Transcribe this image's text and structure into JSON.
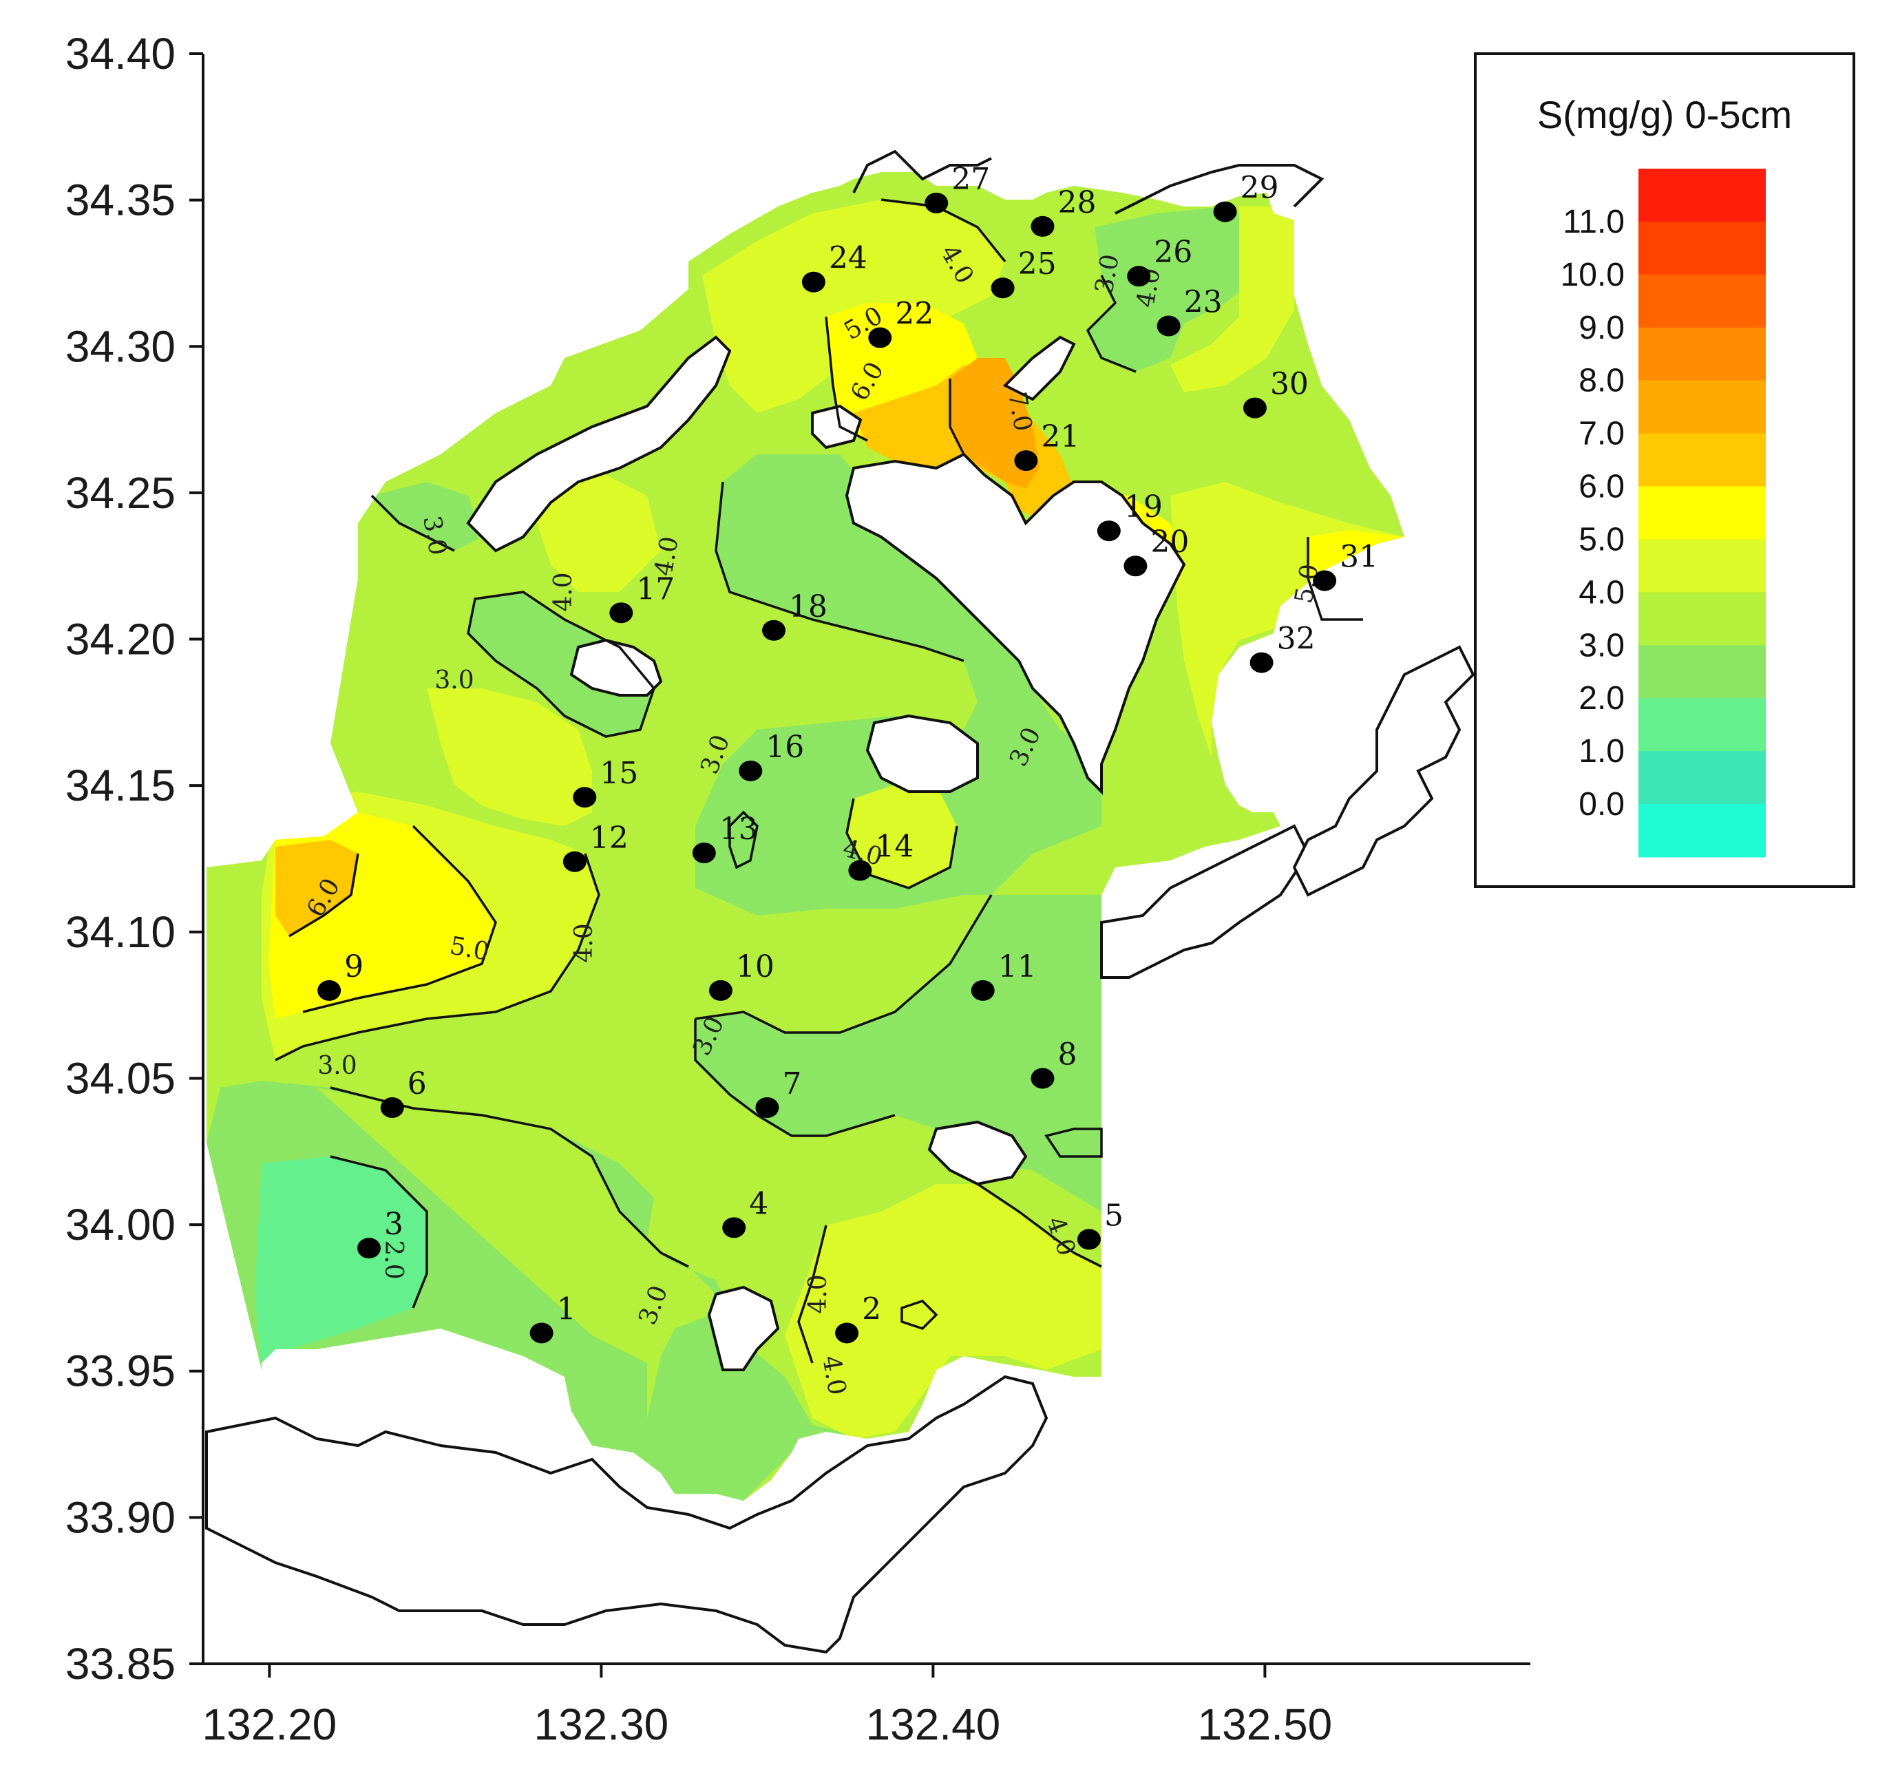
{
  "map": {
    "x_ticks": [
      "132.20",
      "132.30",
      "132.40",
      "132.50"
    ],
    "y_ticks": [
      "34.40",
      "34.35",
      "34.30",
      "34.25",
      "34.20",
      "34.15",
      "34.10",
      "34.05",
      "34.00",
      "33.95",
      "33.90",
      "33.85"
    ],
    "xlim": [
      132.18,
      132.58
    ],
    "ylim": [
      33.85,
      34.4
    ],
    "contour_labels": [
      "2.0",
      "3.0",
      "4.0",
      "5.0",
      "6.0",
      "7.0"
    ],
    "stations": [
      {
        "id": "1",
        "lon": 132.282,
        "lat": 33.963
      },
      {
        "id": "2",
        "lon": 132.374,
        "lat": 33.963
      },
      {
        "id": "3",
        "lon": 132.23,
        "lat": 33.992
      },
      {
        "id": "4",
        "lon": 132.34,
        "lat": 33.999
      },
      {
        "id": "5",
        "lon": 132.447,
        "lat": 33.995
      },
      {
        "id": "6",
        "lon": 132.237,
        "lat": 34.04
      },
      {
        "id": "7",
        "lon": 132.35,
        "lat": 34.04
      },
      {
        "id": "8",
        "lon": 132.433,
        "lat": 34.05
      },
      {
        "id": "9",
        "lon": 132.218,
        "lat": 34.08
      },
      {
        "id": "10",
        "lon": 132.336,
        "lat": 34.08
      },
      {
        "id": "11",
        "lon": 132.415,
        "lat": 34.08
      },
      {
        "id": "12",
        "lon": 132.292,
        "lat": 34.124
      },
      {
        "id": "13",
        "lon": 132.331,
        "lat": 34.127
      },
      {
        "id": "14",
        "lon": 132.378,
        "lat": 34.121
      },
      {
        "id": "15",
        "lon": 132.295,
        "lat": 34.146
      },
      {
        "id": "16",
        "lon": 132.345,
        "lat": 34.155
      },
      {
        "id": "17",
        "lon": 132.306,
        "lat": 34.209
      },
      {
        "id": "18",
        "lon": 132.352,
        "lat": 34.203
      },
      {
        "id": "19",
        "lon": 132.453,
        "lat": 34.237
      },
      {
        "id": "20",
        "lon": 132.461,
        "lat": 34.225
      },
      {
        "id": "21",
        "lon": 132.428,
        "lat": 34.261
      },
      {
        "id": "22",
        "lon": 132.384,
        "lat": 34.303
      },
      {
        "id": "23",
        "lon": 132.471,
        "lat": 34.307
      },
      {
        "id": "24",
        "lon": 132.364,
        "lat": 34.322
      },
      {
        "id": "25",
        "lon": 132.421,
        "lat": 34.32
      },
      {
        "id": "26",
        "lon": 132.462,
        "lat": 34.324
      },
      {
        "id": "27",
        "lon": 132.401,
        "lat": 34.349
      },
      {
        "id": "28",
        "lon": 132.433,
        "lat": 34.341
      },
      {
        "id": "29",
        "lon": 132.488,
        "lat": 34.346
      },
      {
        "id": "30",
        "lon": 132.497,
        "lat": 34.279
      },
      {
        "id": "31",
        "lon": 132.518,
        "lat": 34.22
      },
      {
        "id": "32",
        "lon": 132.499,
        "lat": 34.192
      }
    ]
  },
  "legend": {
    "title": "S(mg/g) 0-5cm",
    "labels": [
      "11.0",
      "10.0",
      "9.0",
      "8.0",
      "7.0",
      "6.0",
      "5.0",
      "4.0",
      "3.0",
      "2.0",
      "1.0",
      "0.0"
    ],
    "colors": [
      "#ff1e0a",
      "#ff4200",
      "#ff6400",
      "#ff8c00",
      "#ffaa00",
      "#ffc800",
      "#ffff00",
      "#dcfa28",
      "#b4f03c",
      "#8ce664",
      "#64f08c",
      "#3ce6b4",
      "#1efad2"
    ]
  }
}
